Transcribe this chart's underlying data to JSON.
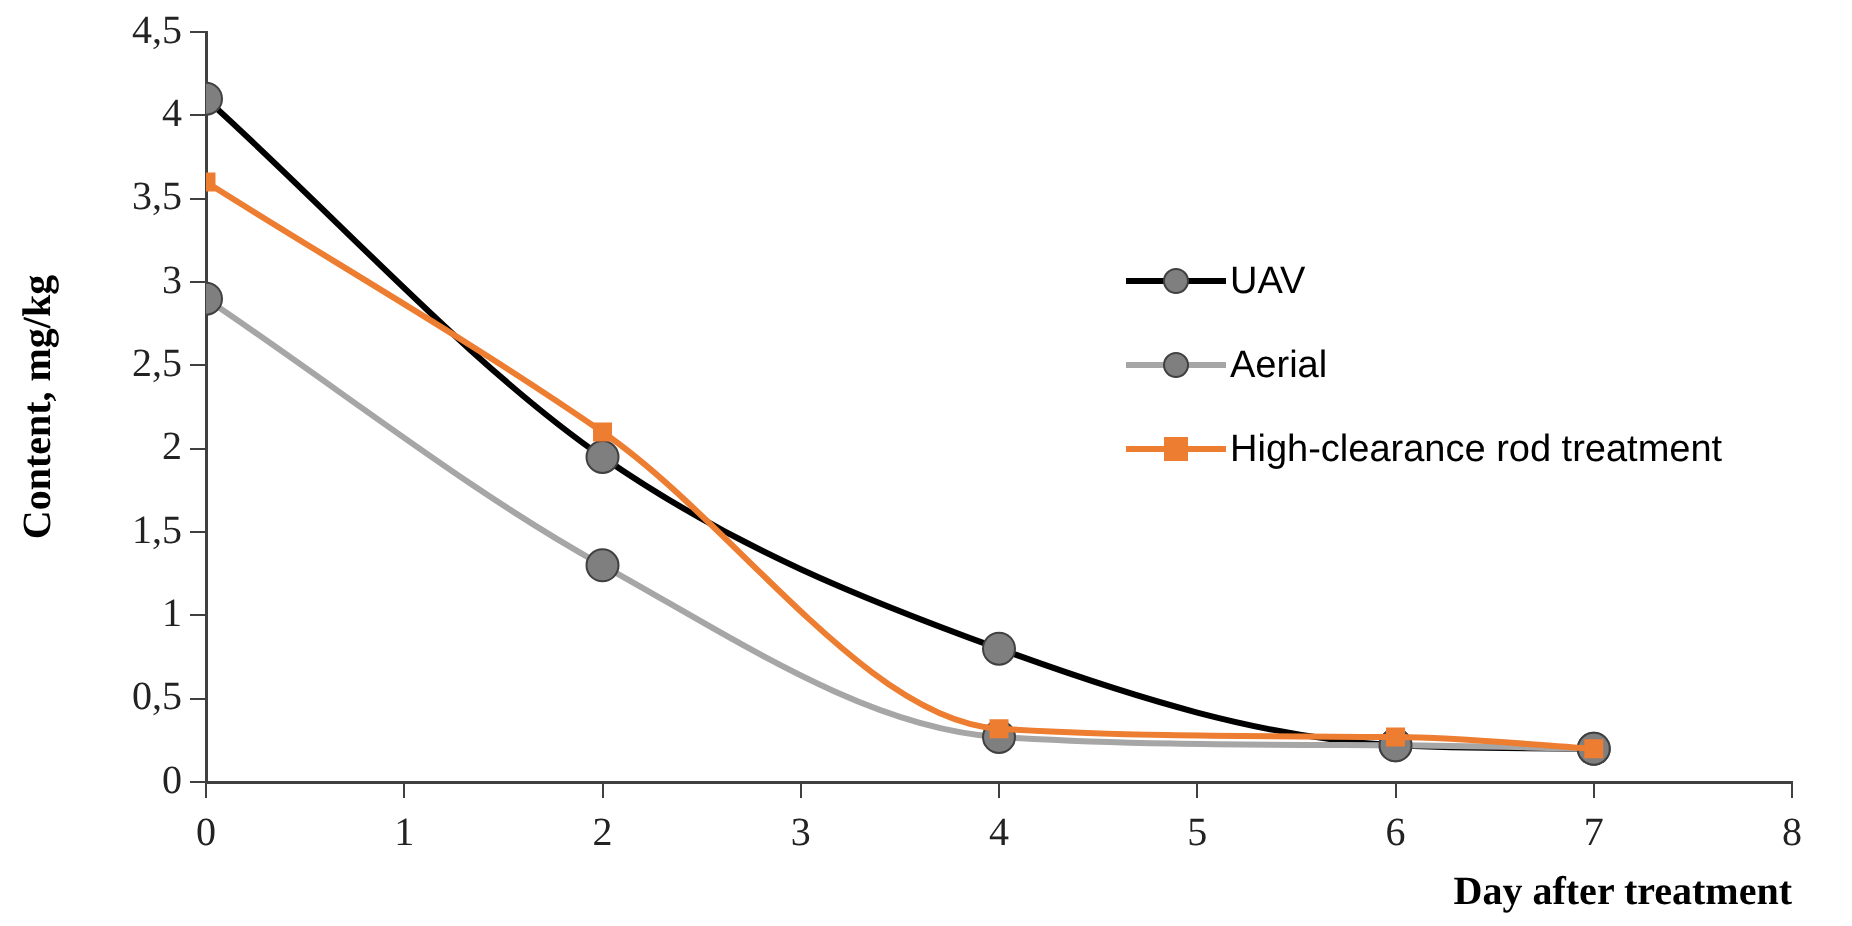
{
  "chart_data": {
    "type": "line",
    "xlabel": "Day after treatment",
    "ylabel": "Content, mg/kg",
    "xlim": [
      0,
      8
    ],
    "xticks": [
      0,
      1,
      2,
      3,
      4,
      5,
      6,
      7,
      8
    ],
    "ylim": [
      0,
      4.5
    ],
    "yticks": [
      0,
      {
        "value": 0.5,
        "label": "0,5"
      },
      1,
      {
        "value": 1.5,
        "label": "1,5"
      },
      2,
      {
        "value": 2.5,
        "label": "2,5"
      },
      3,
      {
        "value": 3.5,
        "label": "3,5"
      },
      4,
      {
        "value": 4.5,
        "label": "4,5"
      }
    ],
    "x": [
      0,
      2,
      4,
      6,
      7
    ],
    "series": [
      {
        "name": "UAV",
        "color": "#000000",
        "marker": "circle",
        "values": [
          4.1,
          1.95,
          0.8,
          0.22,
          0.2
        ]
      },
      {
        "name": "Aerial",
        "color": "#a6a6a6",
        "marker": "circle",
        "values": [
          2.9,
          1.3,
          0.27,
          0.22,
          0.2
        ]
      },
      {
        "name": "High-clearance rod treatment",
        "color": "#ed7d31",
        "marker": "square",
        "values": [
          3.6,
          2.1,
          0.32,
          0.27,
          0.2
        ]
      }
    ],
    "grid": false,
    "legend": "right"
  }
}
